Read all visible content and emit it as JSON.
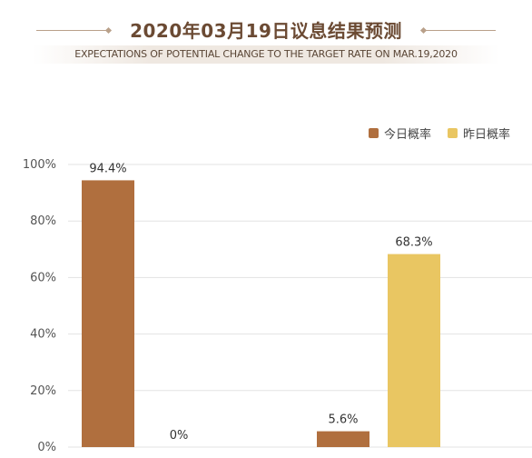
{
  "header": {
    "title": "2020年03月19日议息结果预测",
    "subtitle": "EXPECTATIONS OF POTENTIAL CHANGE TO THE TARGET RATE ON MAR.19,2020"
  },
  "colors": {
    "today": "#b06f3e",
    "yesterday": "#e9c662",
    "grid": "#e3e3e3",
    "axis_text": "#555555"
  },
  "chart_data": {
    "type": "bar",
    "title": "2020年03月19日议息结果预测",
    "subtitle": "EXPECTATIONS OF POTENTIAL CHANGE TO THE TARGET RATE ON MAR.19,2020",
    "categories": [
      "",
      ""
    ],
    "series": [
      {
        "name": "今日概率",
        "values": [
          94.4,
          5.6
        ],
        "labels": [
          "94.4%",
          "5.6%"
        ],
        "color": "#b06f3e"
      },
      {
        "name": "昨日概率",
        "values": [
          0,
          68.3
        ],
        "labels": [
          "0%",
          "68.3%"
        ],
        "color": "#e9c662"
      }
    ],
    "ylim": [
      0,
      100
    ],
    "yticks": [
      "0%",
      "20%",
      "40%",
      "60%",
      "80%",
      "100%"
    ],
    "grid": true,
    "legend": "top-right"
  }
}
